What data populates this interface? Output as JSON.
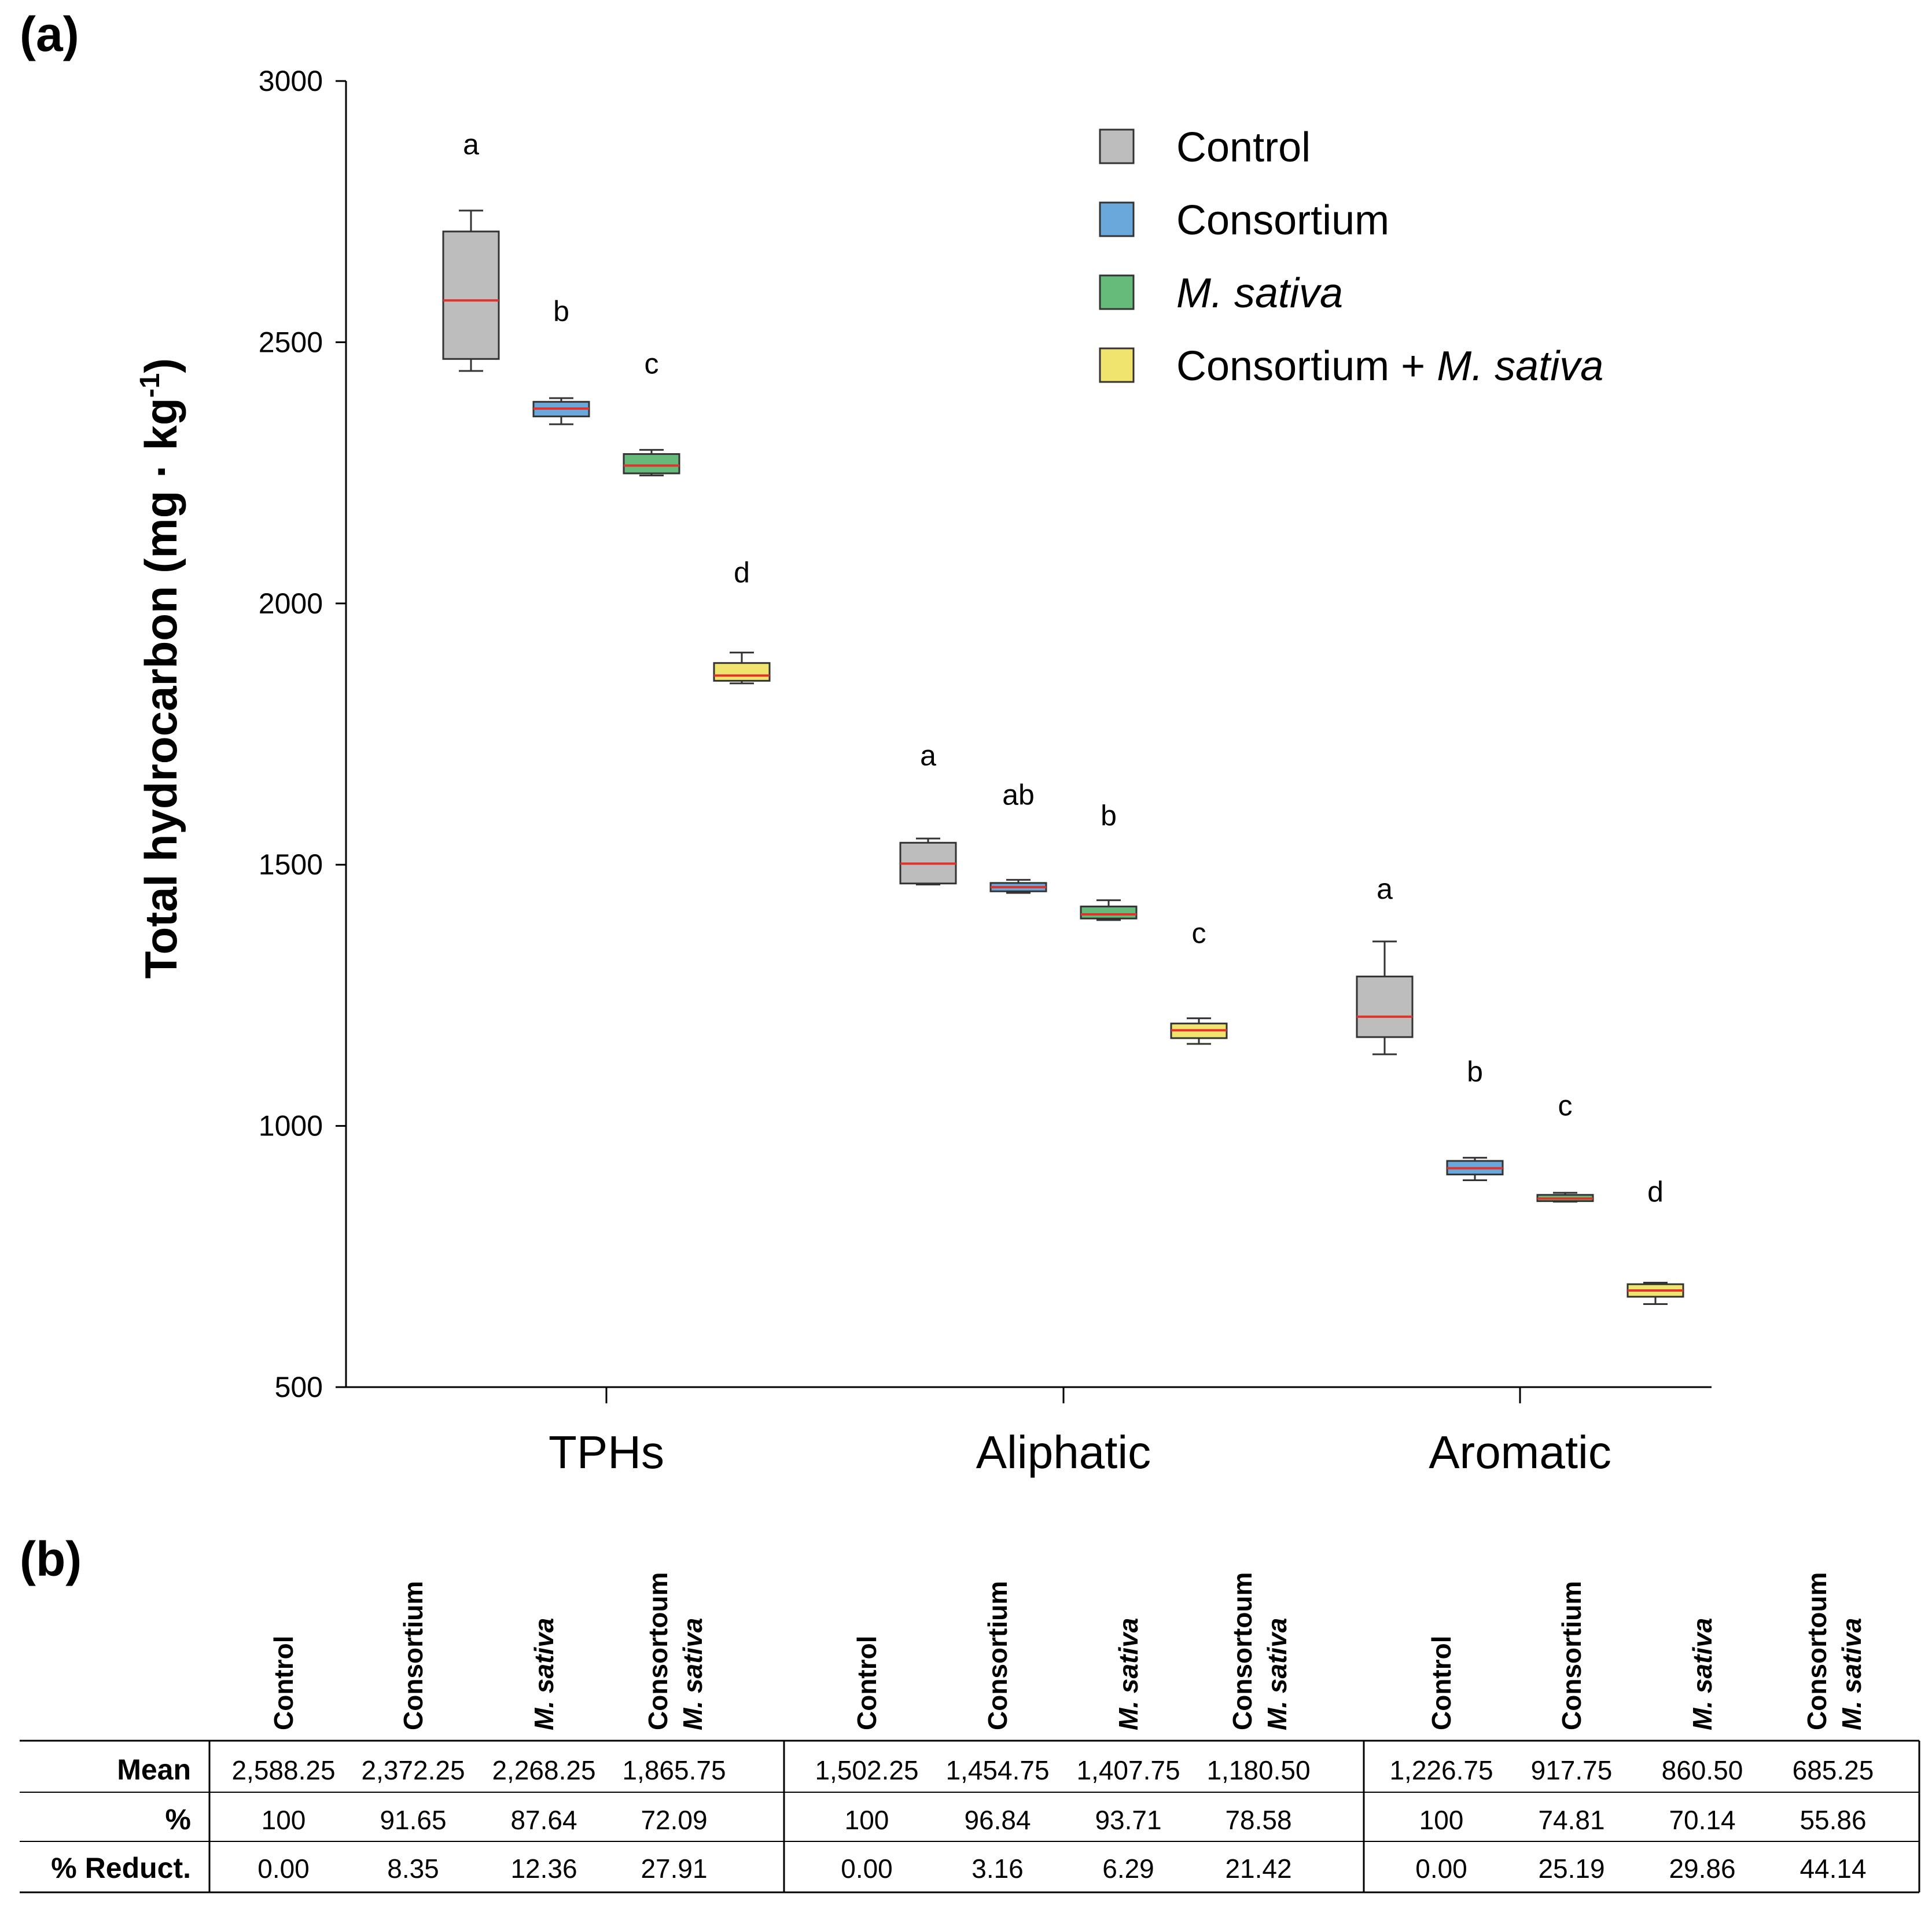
{
  "panel_a_label": "(a)",
  "panel_b_label": "(b)",
  "chart_data": {
    "type": "box",
    "ylabel": "Total hydrocarbon (mg · kg",
    "ylabel_sup": "-1",
    "ylabel_close": ")",
    "ylim": [
      500,
      3000
    ],
    "yticks": [
      500,
      1000,
      1500,
      2000,
      2500,
      3000
    ],
    "categories": [
      "TPHs",
      "Aliphatic",
      "Aromatic"
    ],
    "series": [
      {
        "name": "Control",
        "italic": false,
        "color": "#bdbdbd"
      },
      {
        "name": "Consortium",
        "italic": false,
        "color": "#6aa8dc"
      },
      {
        "name": "M. sativa",
        "italic": true,
        "color": "#66bb7a"
      },
      {
        "name": "Consortium + M. sativa",
        "italic": false,
        "color": "#f0e46e"
      }
    ],
    "boxes": [
      [
        {
          "min": 2445,
          "q1": 2468,
          "median": 2580,
          "q3": 2712,
          "max": 2752,
          "letter": "a",
          "letter_y": 2880
        },
        {
          "min": 2343,
          "q1": 2358,
          "median": 2373,
          "q3": 2386,
          "max": 2393,
          "letter": "b",
          "letter_y": 2560
        },
        {
          "min": 2245,
          "q1": 2249,
          "median": 2264,
          "q3": 2286,
          "max": 2294,
          "letter": "c",
          "letter_y": 2460
        },
        {
          "min": 1847,
          "q1": 1852,
          "median": 1862,
          "q3": 1886,
          "max": 1906,
          "letter": "d",
          "letter_y": 2060
        }
      ],
      [
        {
          "min": 1462,
          "q1": 1464,
          "median": 1502,
          "q3": 1542,
          "max": 1550,
          "letter": "a",
          "letter_y": 1710
        },
        {
          "min": 1446,
          "q1": 1449,
          "median": 1457,
          "q3": 1465,
          "max": 1471,
          "letter": "ab",
          "letter_y": 1635
        },
        {
          "min": 1394,
          "q1": 1397,
          "median": 1405,
          "q3": 1420,
          "max": 1432,
          "letter": "b",
          "letter_y": 1595
        },
        {
          "min": 1157,
          "q1": 1168,
          "median": 1183,
          "q3": 1196,
          "max": 1206,
          "letter": "c",
          "letter_y": 1370
        }
      ],
      [
        {
          "min": 1137,
          "q1": 1170,
          "median": 1209,
          "q3": 1286,
          "max": 1353,
          "letter": "a",
          "letter_y": 1455
        },
        {
          "min": 896,
          "q1": 907,
          "median": 919,
          "q3": 933,
          "max": 939,
          "letter": "b",
          "letter_y": 1105
        },
        {
          "min": 855,
          "q1": 856,
          "median": 861,
          "q3": 868,
          "max": 872,
          "letter": "c",
          "letter_y": 1040
        },
        {
          "min": 659,
          "q1": 673,
          "median": 685,
          "q3": 697,
          "max": 700,
          "letter": "d",
          "letter_y": 875
        }
      ]
    ]
  },
  "table": {
    "col_headers": [
      [
        {
          "line1": "Control",
          "line2": "",
          "italic": false
        },
        {
          "line1": "Consortium",
          "line2": "",
          "italic": false
        },
        {
          "line1": "M. sativa",
          "line2": "",
          "italic": true
        },
        {
          "line1": "Consortoum",
          "line2": "M. sativa",
          "italic": false
        }
      ],
      [
        {
          "line1": "Control",
          "line2": "",
          "italic": false
        },
        {
          "line1": "Consortium",
          "line2": "",
          "italic": false
        },
        {
          "line1": "M. sativa",
          "line2": "",
          "italic": true
        },
        {
          "line1": "Consortoum",
          "line2": "M. sativa",
          "italic": false
        }
      ],
      [
        {
          "line1": "Control",
          "line2": "",
          "italic": false
        },
        {
          "line1": "Consortium",
          "line2": "",
          "italic": false
        },
        {
          "line1": "M. sativa",
          "line2": "",
          "italic": true
        },
        {
          "line1": "Consortoum",
          "line2": "M. sativa",
          "italic": false
        }
      ]
    ],
    "rows": [
      {
        "label": "Mean",
        "values": [
          "2,588.25",
          "2,372.25",
          "2,268.25",
          "1,865.75",
          "1,502.25",
          "1,454.75",
          "1,407.75",
          "1,180.50",
          "1,226.75",
          "917.75",
          "860.50",
          "685.25"
        ]
      },
      {
        "label": "%",
        "values": [
          "100",
          "91.65",
          "87.64",
          "72.09",
          "100",
          "96.84",
          "93.71",
          "78.58",
          "100",
          "74.81",
          "70.14",
          "55.86"
        ]
      },
      {
        "label": "% Reduct.",
        "values": [
          "0.00",
          "8.35",
          "12.36",
          "27.91",
          "0.00",
          "3.16",
          "6.29",
          "21.42",
          "0.00",
          "25.19",
          "29.86",
          "44.14"
        ]
      }
    ]
  }
}
